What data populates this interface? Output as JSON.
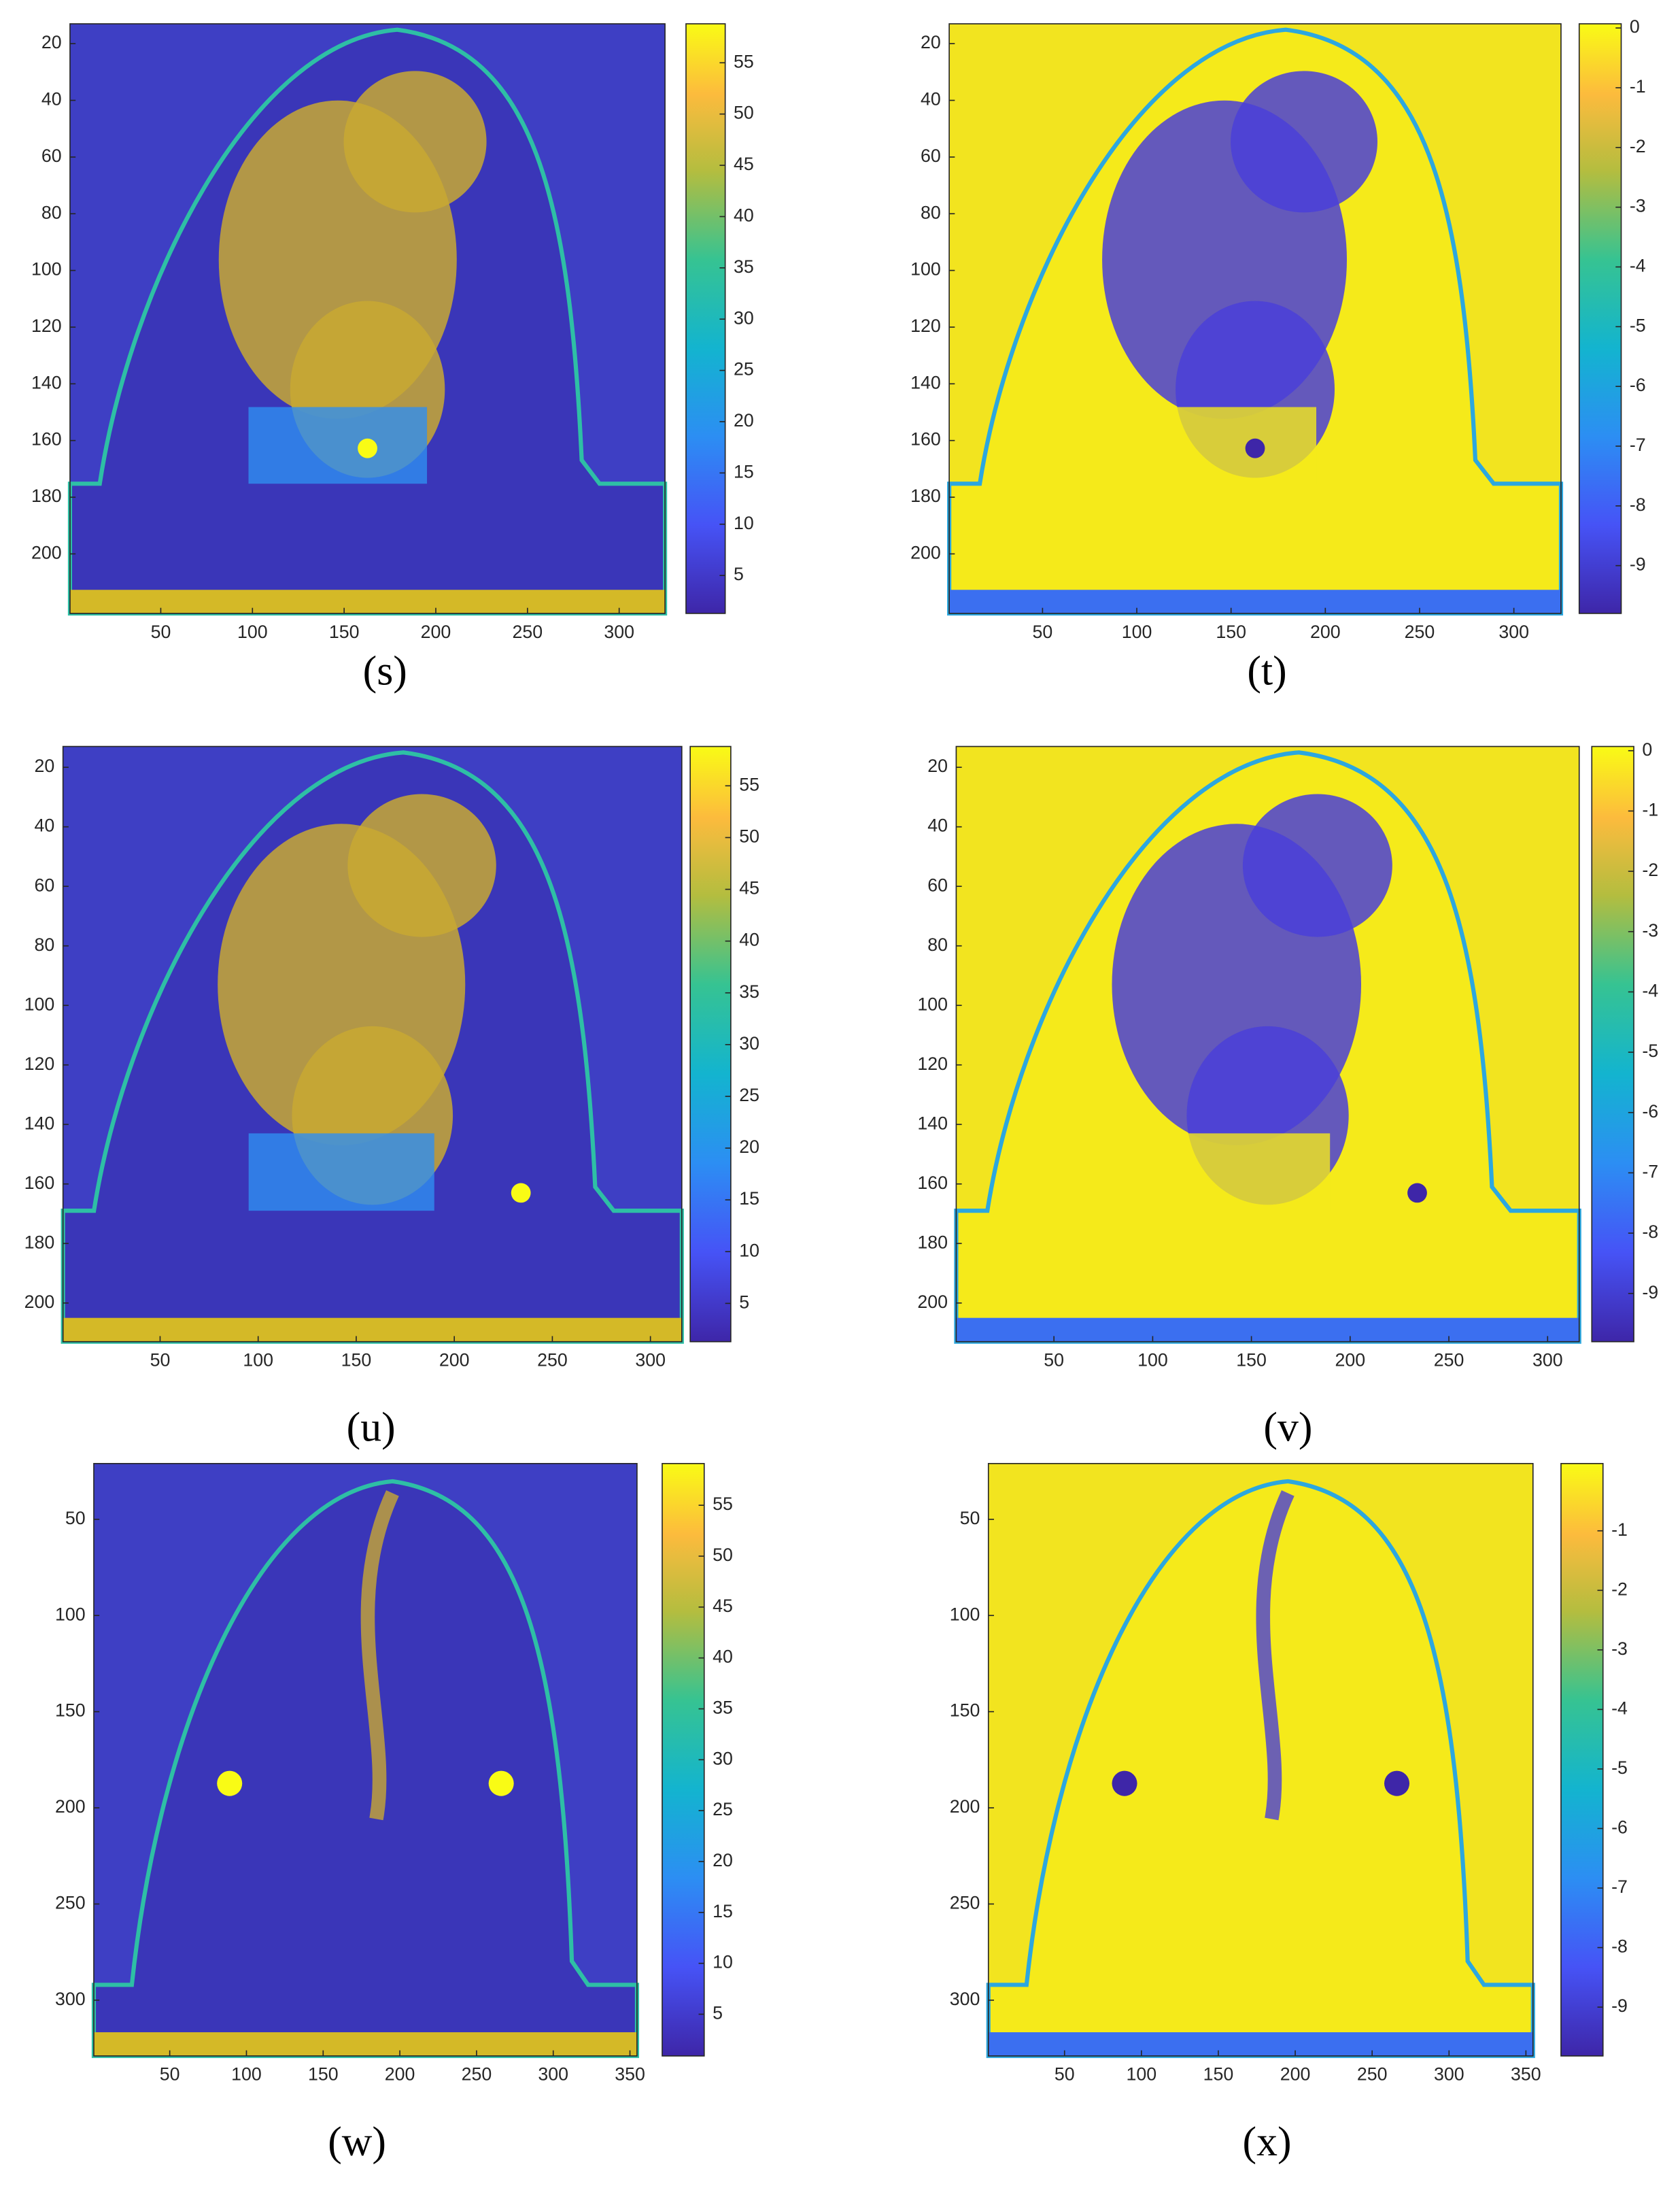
{
  "chart_data": [
    {
      "type": "image",
      "title": "(s)",
      "xlim": [
        0.5,
        325
      ],
      "ylim": [
        13,
        221
      ],
      "xticks": [
        50,
        100,
        150,
        200,
        250,
        300
      ],
      "yticks": [
        20,
        40,
        60,
        80,
        100,
        120,
        140,
        160,
        180,
        200
      ],
      "clim": [
        1.3,
        58.8
      ],
      "cticks": [
        5,
        10,
        15,
        20,
        25,
        30,
        35,
        40,
        45,
        50,
        55
      ]
    },
    {
      "type": "image",
      "title": "(t)",
      "xlim": [
        0.5,
        325
      ],
      "ylim": [
        13,
        221
      ],
      "xticks": [
        50,
        100,
        150,
        200,
        250,
        300
      ],
      "yticks": [
        20,
        40,
        60,
        80,
        100,
        120,
        140,
        160,
        180,
        200
      ],
      "clim": [
        -9.8,
        0.07
      ],
      "cticks": [
        0,
        -1,
        -2,
        -3,
        -4,
        -5,
        -6,
        -7,
        -8,
        -9
      ]
    },
    {
      "type": "image",
      "title": "(u)",
      "xlim": [
        0.5,
        316
      ],
      "ylim": [
        13,
        213
      ],
      "xticks": [
        50,
        100,
        150,
        200,
        250,
        300
      ],
      "yticks": [
        20,
        40,
        60,
        80,
        100,
        120,
        140,
        160,
        180,
        200
      ],
      "clim": [
        1.3,
        58.8
      ],
      "cticks": [
        5,
        10,
        15,
        20,
        25,
        30,
        35,
        40,
        45,
        50,
        55
      ]
    },
    {
      "type": "image",
      "title": "(v)",
      "xlim": [
        0.5,
        316
      ],
      "ylim": [
        13,
        213
      ],
      "xticks": [
        50,
        100,
        150,
        200,
        250,
        300
      ],
      "yticks": [
        20,
        40,
        60,
        80,
        100,
        120,
        140,
        160,
        180,
        200
      ],
      "clim": [
        -9.8,
        0.07
      ],
      "cticks": [
        0,
        -1,
        -2,
        -3,
        -4,
        -5,
        -6,
        -7,
        -8,
        -9
      ]
    },
    {
      "type": "image",
      "title": "(w)",
      "xlim": [
        0.5,
        354.6
      ],
      "ylim": [
        21,
        329
      ],
      "xticks": [
        50,
        100,
        150,
        200,
        250,
        300,
        350
      ],
      "yticks": [
        50,
        100,
        150,
        200,
        250,
        300
      ],
      "clim": [
        0.9,
        59.1
      ],
      "cticks": [
        5,
        10,
        15,
        20,
        25,
        30,
        35,
        40,
        45,
        50,
        55
      ]
    },
    {
      "type": "image",
      "title": "(x)",
      "xlim": [
        0.5,
        354.6
      ],
      "ylim": [
        21,
        329
      ],
      "xticks": [
        50,
        100,
        150,
        200,
        250,
        300,
        350
      ],
      "yticks": [
        50,
        100,
        150,
        200,
        250,
        300
      ],
      "clim": [
        -9.82,
        0.13
      ],
      "cticks": [
        -1,
        -2,
        -3,
        -4,
        -5,
        -6,
        -7,
        -8,
        -9
      ]
    }
  ]
}
